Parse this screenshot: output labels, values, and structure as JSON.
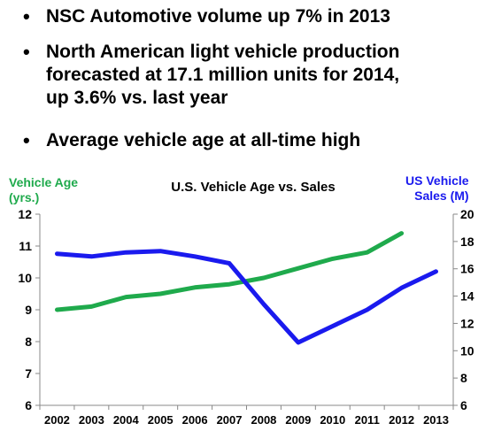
{
  "bullets": [
    "NSC Automotive volume up 7% in 2013",
    "North American light vehicle production forecasted at 17.1 million units for 2014, up 3.6% vs. last year",
    "Average vehicle age at all-time high"
  ],
  "bullet_symbol": "•",
  "chart_data": {
    "type": "line",
    "title": "U.S. Vehicle Age vs. Sales",
    "left_axis_label": [
      "Vehicle Age",
      "(yrs.)"
    ],
    "right_axis_label": [
      "US Vehicle",
      "Sales (M)"
    ],
    "categories": [
      "2002",
      "2003",
      "2004",
      "2005",
      "2006",
      "2007",
      "2008",
      "2009",
      "2010",
      "2011",
      "2012",
      "2013"
    ],
    "left_ylim": [
      6,
      12
    ],
    "left_ticks": [
      6,
      7,
      8,
      9,
      10,
      11,
      12
    ],
    "right_ylim": [
      6,
      20
    ],
    "right_ticks": [
      6,
      8,
      10,
      12,
      14,
      16,
      18,
      20
    ],
    "series": [
      {
        "axis": "left",
        "color": "#1faa4c",
        "x": [
          "2002",
          "2003",
          "2004",
          "2005",
          "2006",
          "2007",
          "2008",
          "2009",
          "2010",
          "2011",
          "2012"
        ],
        "values": [
          9.0,
          9.1,
          9.4,
          9.5,
          9.7,
          9.8,
          10.0,
          10.3,
          10.6,
          10.8,
          11.4
        ]
      },
      {
        "axis": "right",
        "color": "#1a1aee",
        "x": [
          "2002",
          "2003",
          "2004",
          "2005",
          "2006",
          "2007",
          "2008",
          "2009",
          "2010",
          "2011",
          "2012",
          "2013"
        ],
        "values": [
          17.1,
          16.9,
          17.2,
          17.3,
          16.9,
          16.4,
          13.4,
          10.6,
          11.8,
          13.0,
          14.6,
          15.8
        ]
      }
    ],
    "grid": false,
    "legend": "none"
  },
  "colors": {
    "age": "#1faa4c",
    "sales": "#1a1aee"
  }
}
